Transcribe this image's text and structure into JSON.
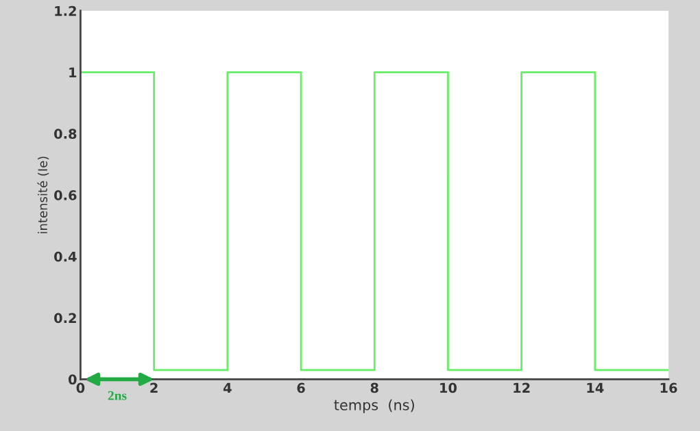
{
  "chart_data": {
    "type": "step",
    "xlabel": "temps  (ns)",
    "ylabel": "intensité (Ie)",
    "x": [
      0,
      2,
      4,
      6,
      8,
      10,
      12,
      14,
      16
    ],
    "series": [
      {
        "color": "#66ee66",
        "values": [
          1,
          0.03,
          1,
          0.03,
          1,
          0.03,
          1,
          0.03,
          0.03
        ]
      }
    ],
    "xlim": [
      0,
      16
    ],
    "xticks": [
      0,
      2,
      4,
      6,
      8,
      10,
      12,
      14,
      16
    ],
    "ylim": [
      0,
      1.2
    ],
    "yticks": [
      0,
      0.2,
      0.4,
      0.6,
      0.8,
      1,
      1.2
    ],
    "annotations": [
      "2ns"
    ],
    "grid": false,
    "legend": false
  }
}
